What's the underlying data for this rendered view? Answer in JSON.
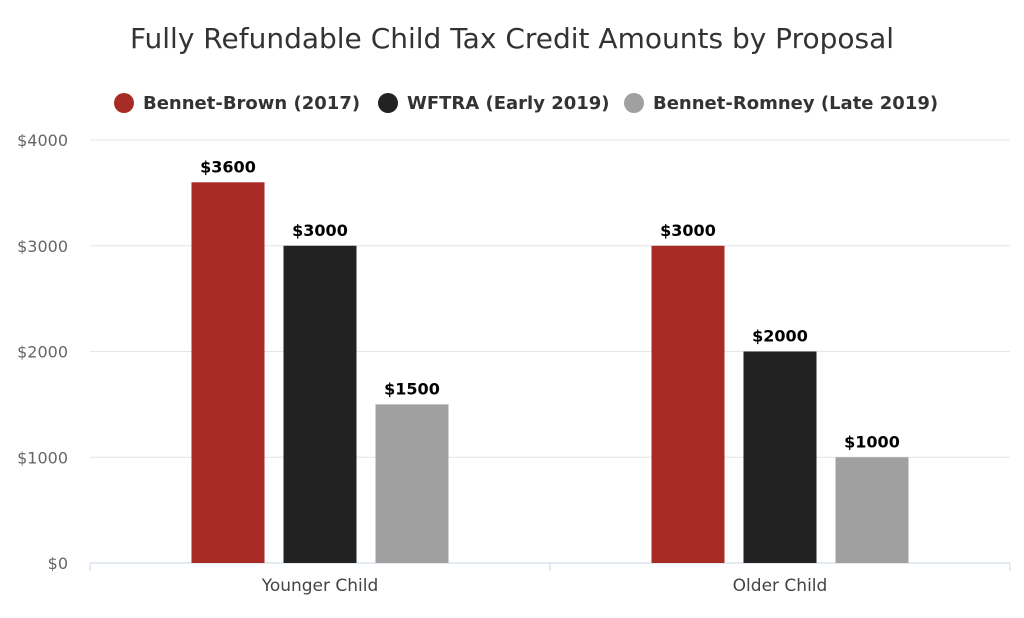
{
  "chart_data": {
    "type": "bar",
    "title": "Fully Refundable Child Tax Credit Amounts by Proposal",
    "xlabel": "",
    "ylabel": "",
    "categories": [
      "Younger Child",
      "Older Child"
    ],
    "series": [
      {
        "name": "Bennet-Brown (2017)",
        "color": "#a82b25",
        "values": [
          3600,
          3000
        ],
        "labels": [
          "$3600",
          "$3000"
        ]
      },
      {
        "name": "WFTRA (Early 2019)",
        "color": "#222222",
        "values": [
          3000,
          2000
        ],
        "labels": [
          "$3000",
          "$2000"
        ]
      },
      {
        "name": "Bennet-Romney (Late 2019)",
        "color": "#a0a0a0",
        "values": [
          1500,
          1000
        ],
        "labels": [
          "$1500",
          "$1000"
        ]
      }
    ],
    "ylim": [
      0,
      4000
    ],
    "yticks": [
      0,
      1000,
      2000,
      3000,
      4000
    ],
    "ytick_labels": [
      "$0",
      "$1000",
      "$2000",
      "$3000",
      "$4000"
    ],
    "grid": true,
    "legend_position": "top"
  }
}
